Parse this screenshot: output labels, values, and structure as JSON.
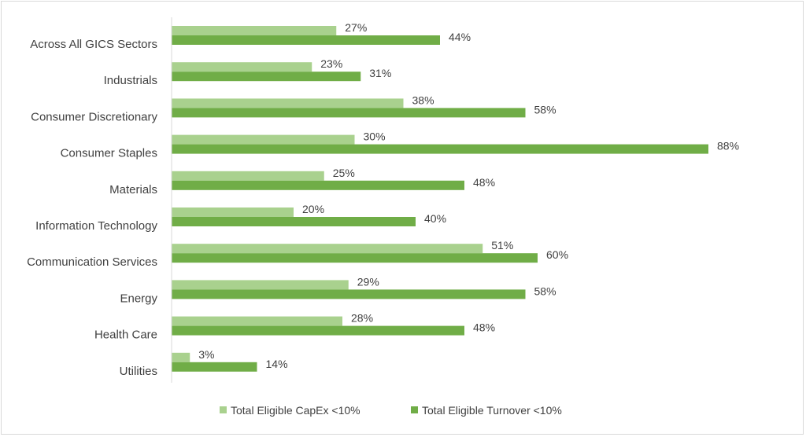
{
  "chart_data": {
    "type": "bar",
    "orientation": "horizontal",
    "categories": [
      "Across All GICS Sectors",
      "Industrials",
      "Consumer Discretionary",
      "Consumer Staples",
      "Materials",
      "Information Technology",
      "Communication Services",
      "Energy",
      "Health Care",
      "Utilities"
    ],
    "series": [
      {
        "name": "Total Eligible CapEx <10%",
        "values": [
          27,
          23,
          38,
          30,
          25,
          20,
          51,
          29,
          28,
          3
        ],
        "labels": [
          "27%",
          "23%",
          "38%",
          "30%",
          "25%",
          "20%",
          "51%",
          "29%",
          "28%",
          "3%"
        ],
        "color": "#a9d18e"
      },
      {
        "name": "Total Eligible Turnover <10%",
        "values": [
          44,
          31,
          58,
          88,
          48,
          40,
          60,
          58,
          48,
          14
        ],
        "labels": [
          "44%",
          "31%",
          "58%",
          "88%",
          "48%",
          "40%",
          "60%",
          "58%",
          "48%",
          "14%"
        ],
        "color": "#70ad47"
      }
    ],
    "xlim": [
      0,
      100
    ],
    "grid": false,
    "legend": "bottom"
  }
}
